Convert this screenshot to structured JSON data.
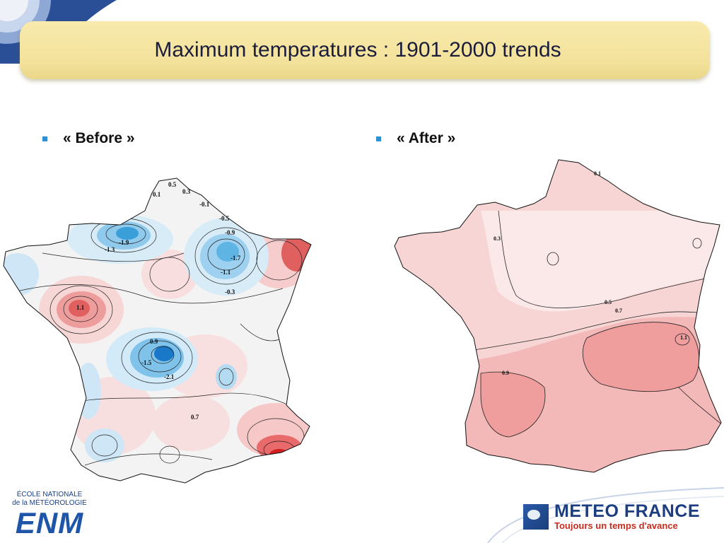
{
  "title": "Maximum temperatures : 1901-2000 trends",
  "bullets": [
    {
      "label": "« Before »"
    },
    {
      "label": "« After »"
    }
  ],
  "before_map": {
    "contour_labels": [
      "0.5",
      "0.3",
      "0.1",
      "-0.1",
      "-0.5",
      "-0.9",
      "-1.3",
      "-1.5",
      "-1.7",
      "-1.9",
      "-1.1",
      "0.9",
      "1.1",
      "-2.1",
      "0.7",
      "-0.3"
    ]
  },
  "after_map": {
    "contour_labels": [
      "0.1",
      "0.3",
      "0.5",
      "0.7",
      "0.9",
      "1.1"
    ]
  },
  "logos": {
    "enm_line1": "ÉCOLE NATIONALE",
    "enm_line2": "de la MÉTÉOROLOGIE",
    "enm_abbrev": "ENM",
    "mf_name": "METEO FRANCE",
    "mf_slogan": "Toujours un temps d'avance"
  },
  "colors": {
    "banner": "#f3e29b",
    "bullet": "#2f8fd5",
    "warm": "#e06060",
    "cool": "#3a9fd8",
    "mf_blue": "#1c3d80",
    "mf_red": "#c62d20"
  }
}
